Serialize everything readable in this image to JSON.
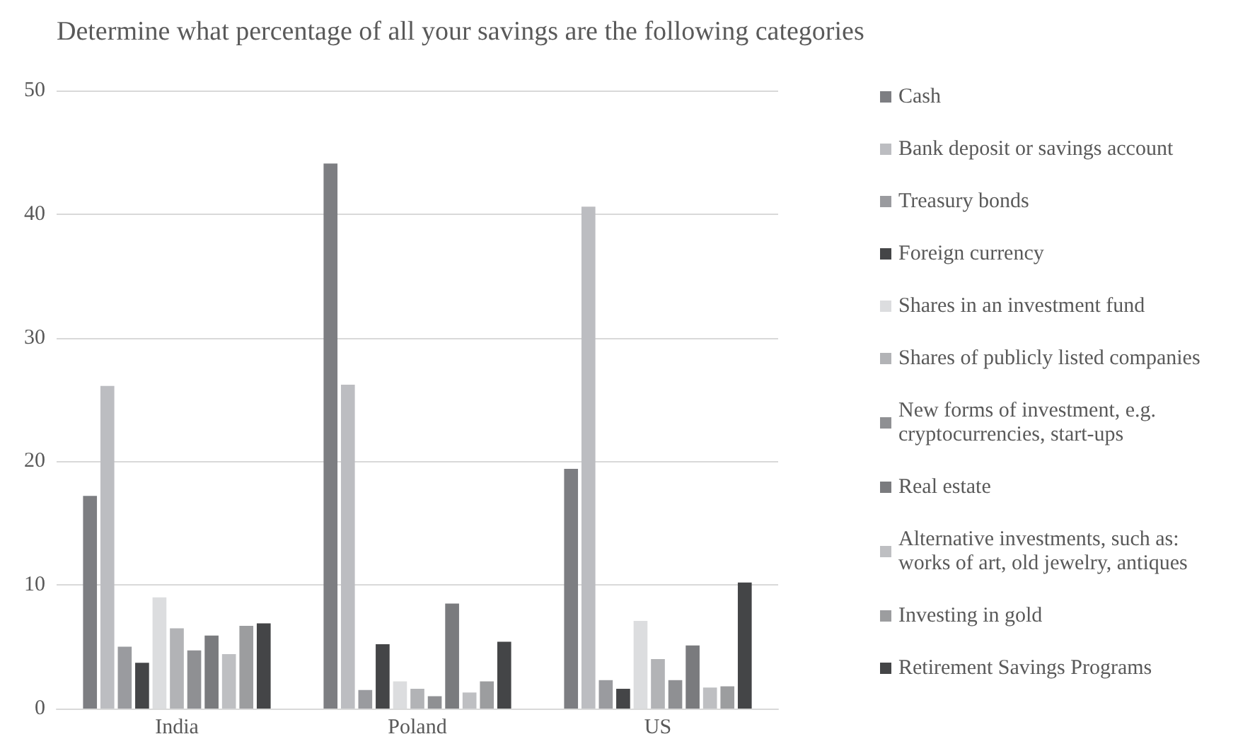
{
  "chart_data": {
    "type": "bar",
    "title": "Determine what percentage of all your savings are the following categories",
    "categories": [
      "India",
      "Poland",
      "US"
    ],
    "series": [
      {
        "name": "Cash",
        "color": "#7d7e82",
        "values": [
          17.2,
          44.1,
          19.4
        ]
      },
      {
        "name": "Bank deposit or savings account",
        "color": "#bcbdc1",
        "values": [
          26.1,
          26.2,
          40.6
        ]
      },
      {
        "name": "Treasury bonds",
        "color": "#9a9b9f",
        "values": [
          5.0,
          1.5,
          2.3
        ]
      },
      {
        "name": "Foreign currency",
        "color": "#444547",
        "values": [
          3.7,
          5.2,
          1.6
        ]
      },
      {
        "name": "Shares in an investment fund",
        "color": "#dcdddf",
        "values": [
          9.0,
          2.2,
          7.1
        ]
      },
      {
        "name": "Shares of publicly listed companies",
        "color": "#b2b3b6",
        "values": [
          6.5,
          1.6,
          4.0
        ]
      },
      {
        "name": "New forms of investment, e.g. cryptocurrencies, start-ups",
        "color": "#8f9093",
        "values": [
          4.7,
          1.0,
          2.3
        ]
      },
      {
        "name": "Real estate",
        "color": "#7a7b7e",
        "values": [
          5.9,
          8.5,
          5.1
        ]
      },
      {
        "name": "Alternative investments, such as: works of art, old jewelry, antiques",
        "color": "#bebfc2",
        "values": [
          4.4,
          1.3,
          1.7
        ]
      },
      {
        "name": "Investing in gold",
        "color": "#9c9d9f",
        "values": [
          6.7,
          2.2,
          1.8
        ]
      },
      {
        "name": "Retirement Savings Programs",
        "color": "#444547",
        "values": [
          6.9,
          5.4,
          10.2
        ]
      }
    ],
    "ylim": [
      0,
      50
    ],
    "yticks": [
      0,
      10,
      20,
      30,
      40,
      50
    ],
    "grid": "y",
    "legend": "right"
  }
}
